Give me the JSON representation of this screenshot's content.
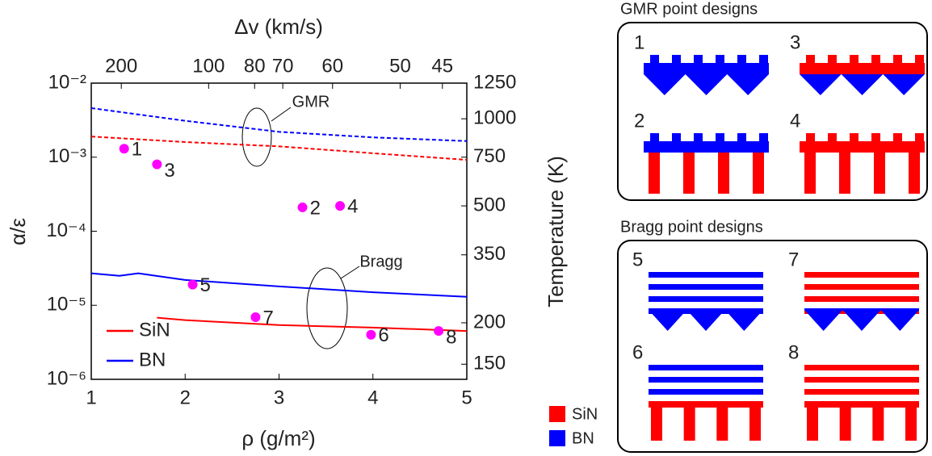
{
  "chart_data": {
    "type": "line",
    "xlabel": "ρ (g/m²)",
    "ylabel": "α/ε",
    "x2label": "Δv (km/s)",
    "y2label": "Temperature (K)",
    "xlim": [
      1,
      5
    ],
    "xticks": [
      1,
      2,
      3,
      4,
      5
    ],
    "ylim": [
      1e-06,
      0.01
    ],
    "log_y": true,
    "yticks": [
      {
        "value": 1e-06,
        "label": "10⁻⁶"
      },
      {
        "value": 1e-05,
        "label": "10⁻⁵"
      },
      {
        "value": 0.0001,
        "label": "10⁻⁴"
      },
      {
        "value": 0.001,
        "label": "10⁻³"
      },
      {
        "value": 0.01,
        "label": "10⁻²"
      }
    ],
    "x2ticks": [
      200,
      100,
      80,
      70,
      60,
      50,
      45
    ],
    "x2tick_positions": [
      1.32,
      2.25,
      2.74,
      3.04,
      3.57,
      4.29,
      4.74
    ],
    "y2ticks": [
      1250,
      1000,
      750,
      500,
      350,
      200,
      150
    ],
    "y2tick_positions": [
      0.01,
      0.0033,
      0.001,
      0.00022,
      4.8e-05,
      5.8e-06,
      1.6e-06
    ],
    "legend": "lower left",
    "series": [
      {
        "name": "SiN",
        "color": "#ff0000",
        "style": "solid",
        "x": [
          1.7,
          2,
          3,
          4,
          5
        ],
        "values": [
          6.8e-06,
          6.3e-06,
          5.4e-06,
          5e-06,
          4.5e-06
        ]
      },
      {
        "name": "BN",
        "color": "#0000ff",
        "style": "solid",
        "x": [
          1,
          1.3,
          1.5,
          2,
          3,
          4,
          5
        ],
        "values": [
          2.7e-05,
          2.5e-05,
          2.7e-05,
          2.2e-05,
          1.8e-05,
          1.5e-05,
          1.3e-05
        ]
      },
      {
        "color": "#ff0000",
        "style": "dashed",
        "x": [
          1,
          2,
          3,
          4,
          5
        ],
        "values": [
          0.0019,
          0.0016,
          0.0014,
          0.00113,
          0.00092
        ]
      },
      {
        "color": "#0000ff",
        "style": "dashed",
        "x": [
          1,
          2,
          3,
          4,
          5
        ],
        "values": [
          0.0046,
          0.0031,
          0.0022,
          0.00185,
          0.00165
        ]
      }
    ],
    "points": {
      "color": "#ff00ff",
      "labels": [
        "1",
        "3",
        "2",
        "4",
        "5",
        "7",
        "6",
        "8"
      ],
      "x": [
        1.35,
        1.7,
        3.25,
        3.65,
        2.08,
        2.75,
        3.98,
        4.7
      ],
      "values": [
        0.0013,
        0.0008,
        0.00021,
        0.00022,
        1.9e-05,
        6.9e-06,
        4e-06,
        4.5e-06
      ]
    },
    "annotations": [
      "GMR",
      "Bragg"
    ]
  },
  "designs": {
    "gmr": {
      "title": "GMR point designs",
      "labels": [
        "1",
        "3",
        "2",
        "4"
      ]
    },
    "bragg": {
      "title": "Bragg point designs",
      "labels": [
        "5",
        "7",
        "6",
        "8"
      ]
    },
    "legend": [
      {
        "name": "SiN",
        "color": "#ff0000"
      },
      {
        "name": "BN",
        "color": "#0000ff"
      }
    ]
  }
}
